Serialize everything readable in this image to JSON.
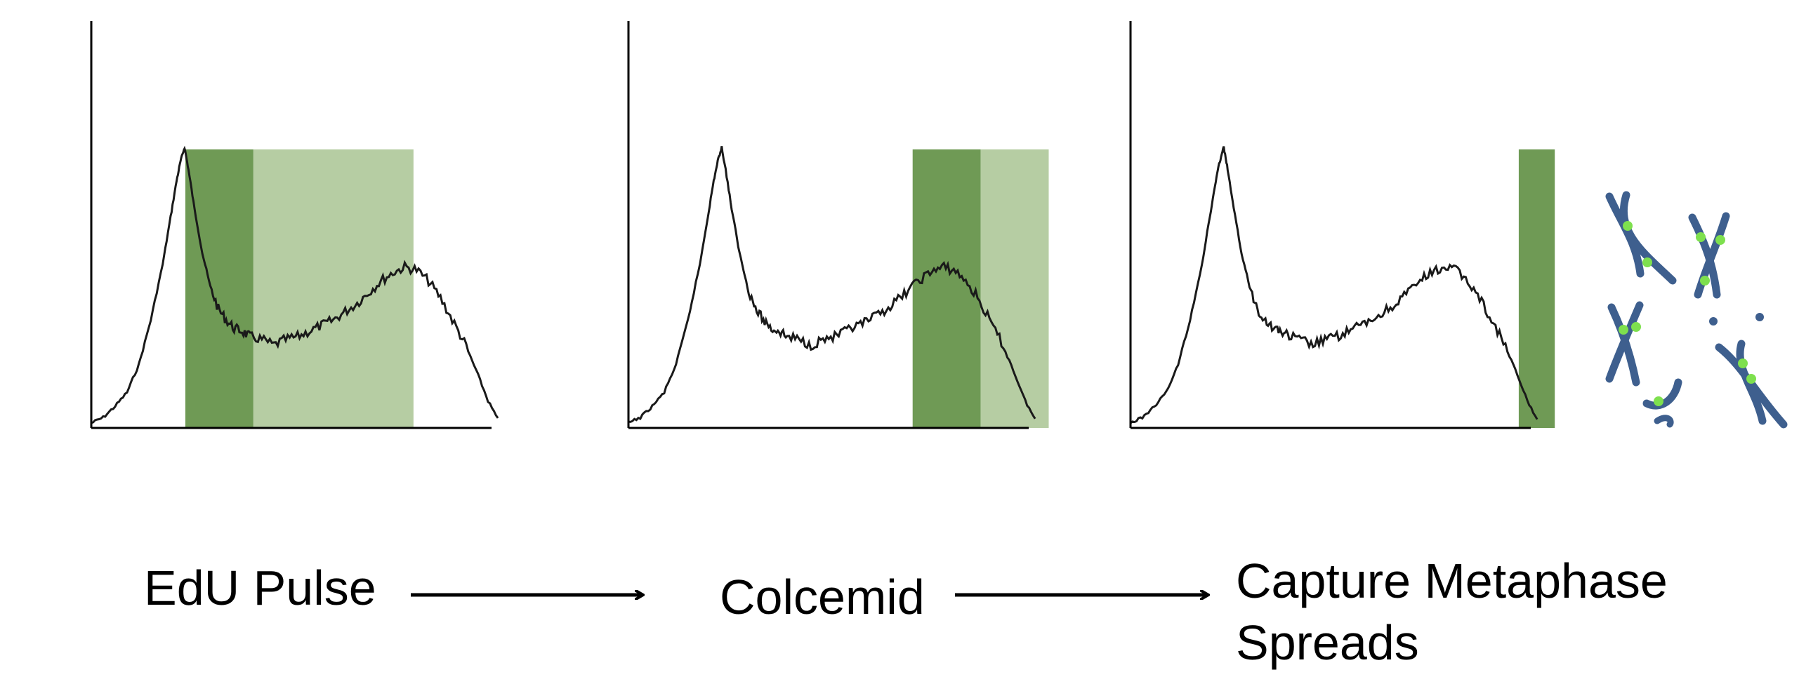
{
  "panels": [
    {
      "id": "panel-1",
      "bands": [
        {
          "from": 0.235,
          "to": 0.405,
          "shade": "dark"
        },
        {
          "from": 0.405,
          "to": 0.805,
          "shade": "light"
        }
      ]
    },
    {
      "id": "panel-2",
      "bands": [
        {
          "from": 0.71,
          "to": 0.88,
          "shade": "dark"
        },
        {
          "from": 0.88,
          "to": 1.05,
          "shade": "light"
        }
      ]
    },
    {
      "id": "panel-3",
      "bands": [
        {
          "from": 0.97,
          "to": 1.06,
          "shade": "dark"
        }
      ]
    }
  ],
  "steps": [
    {
      "label": "EdU Pulse"
    },
    {
      "label": "Colcemid"
    },
    {
      "label_line1": "Capture Metaphase",
      "label_line2": "Spreads"
    }
  ],
  "colors": {
    "band_dark": "#6f9a55",
    "band_light": "#b6cda3",
    "curve": "#1a1a1a",
    "axis": "#000000",
    "chromosome": "#3e5f8e",
    "chromosome_mark": "#7ee04e"
  },
  "icons": [
    "chromosome-spread-icon"
  ]
}
